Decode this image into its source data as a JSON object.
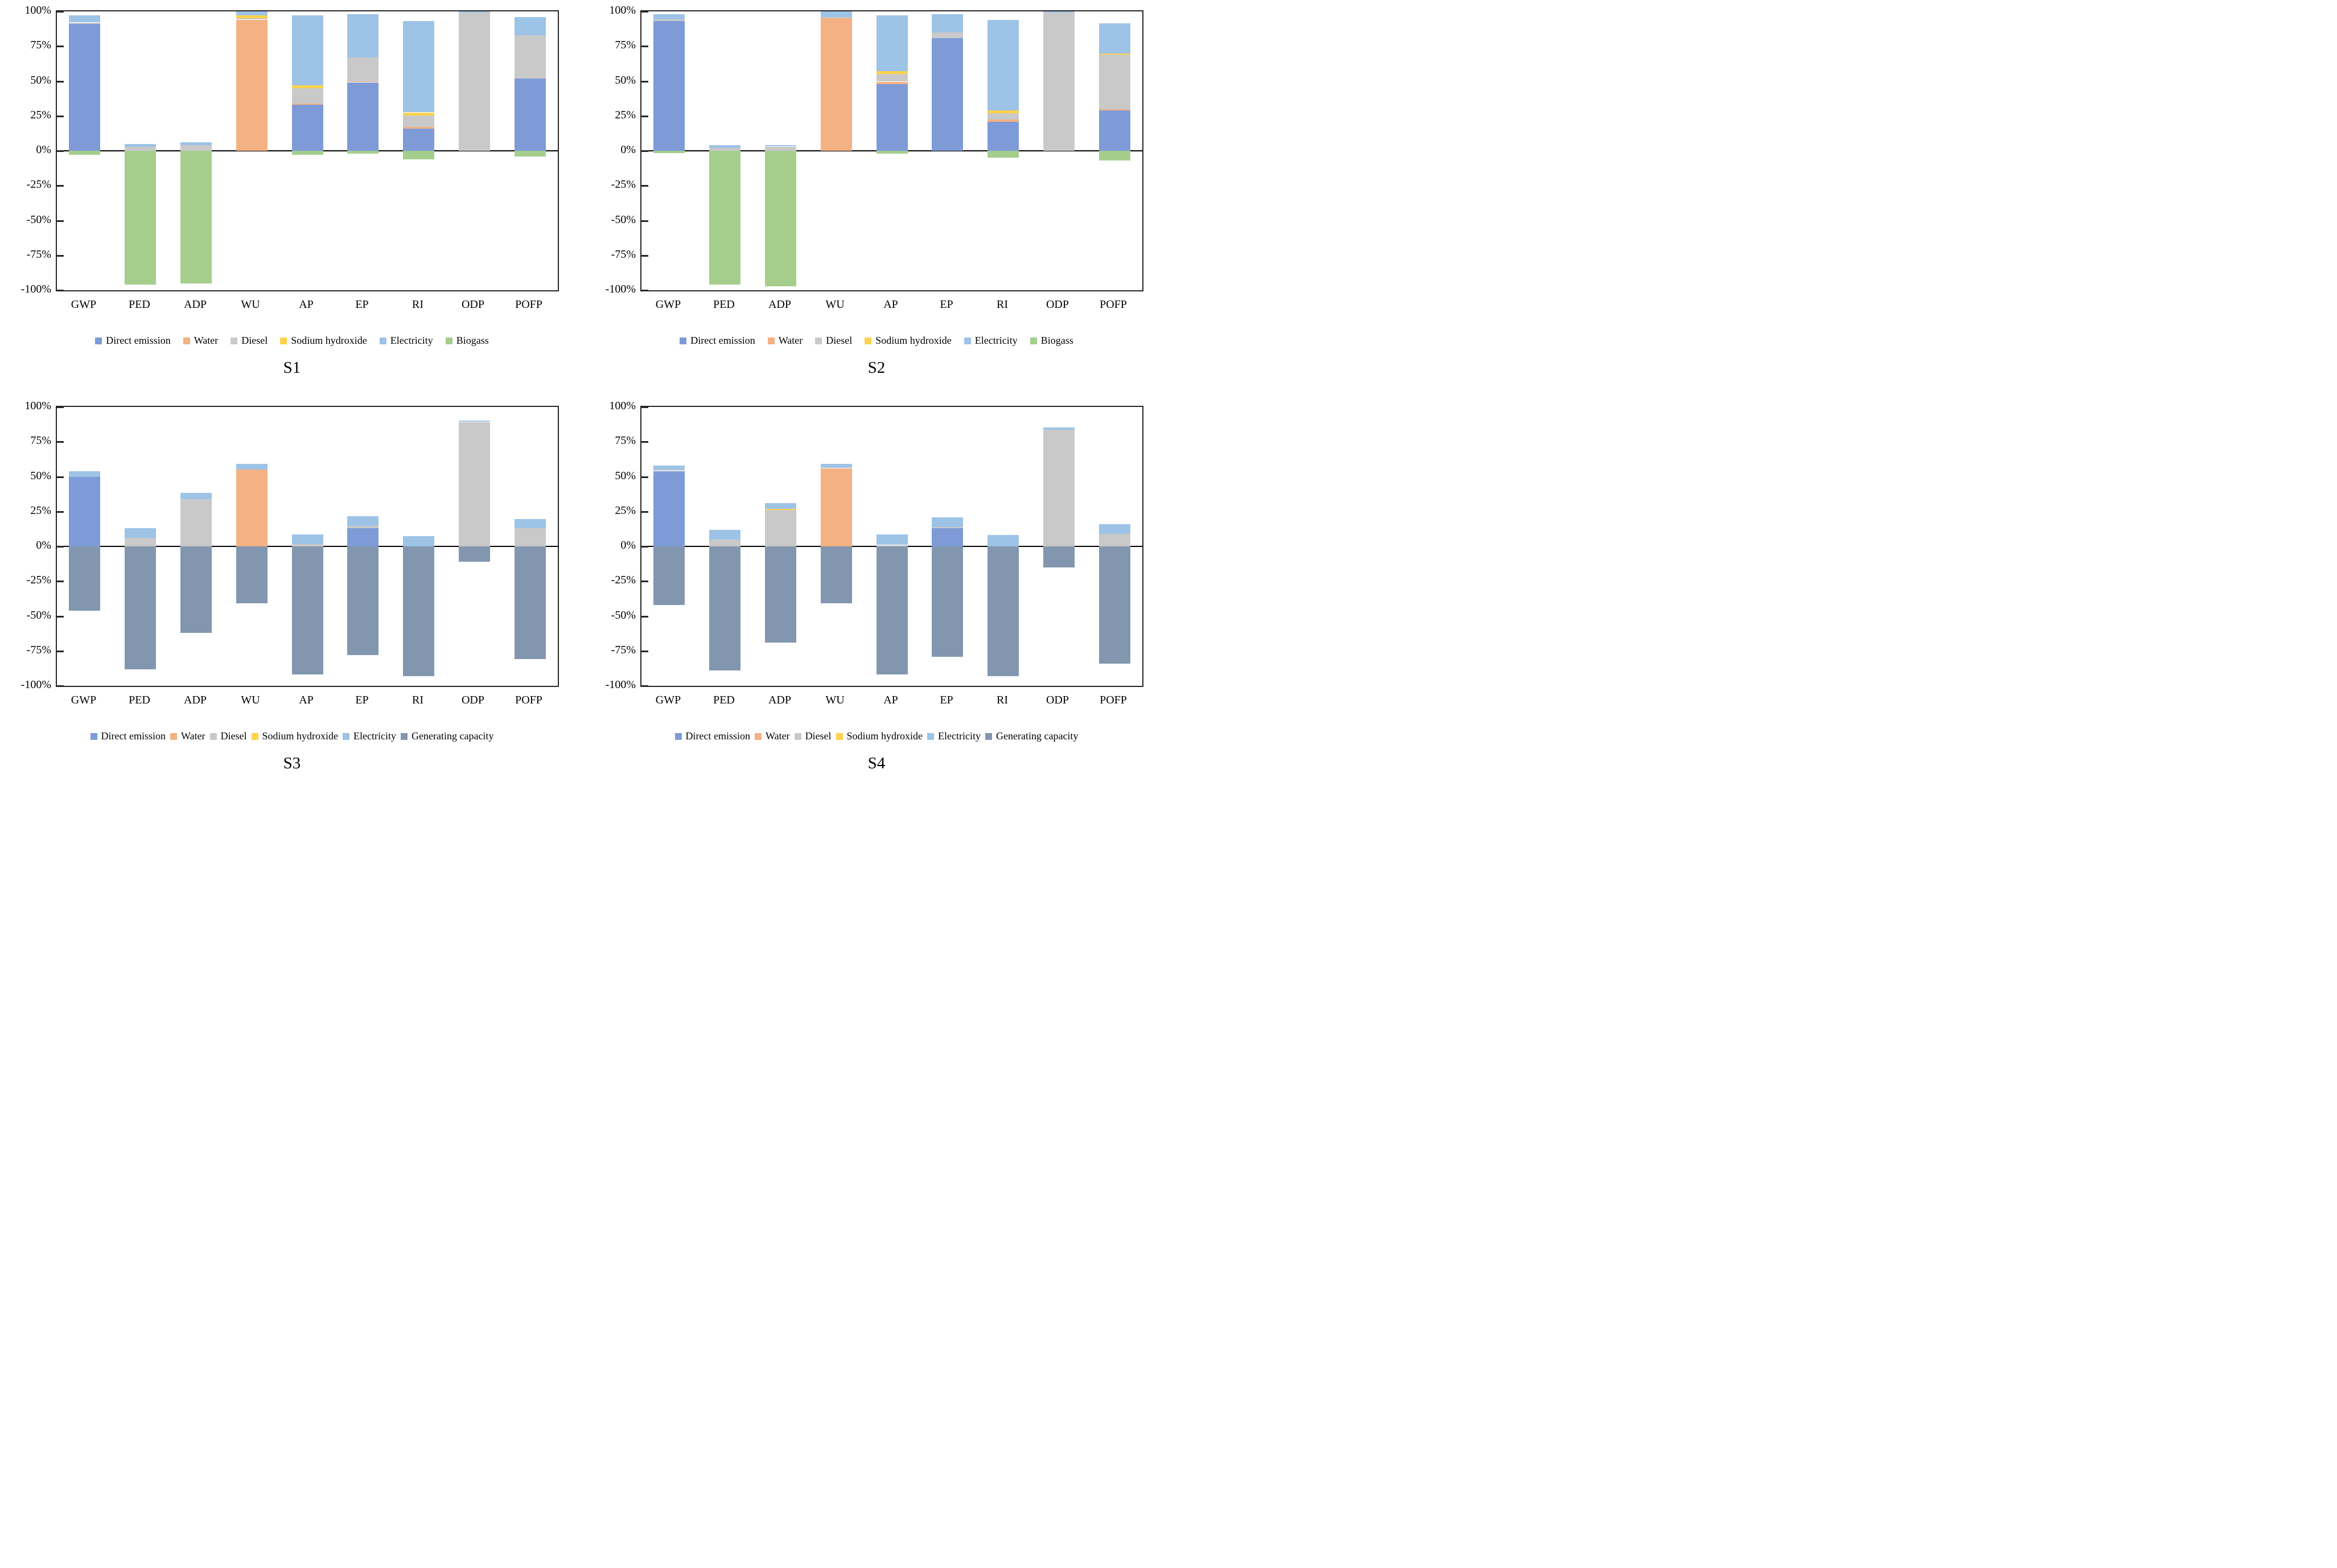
{
  "colors": {
    "Direct emission": "#7E9BD7",
    "Water": "#F4B183",
    "Diesel": "#C9C9C9",
    "Sodium hydroxide": "#FFD24D",
    "Electricity": "#9DC3E6",
    "Biogass": "#A5CE8D",
    "Generating capacity": "#8296AF"
  },
  "axis_color": "#262626",
  "chart_data": [
    {
      "type": "bar",
      "stacked": true,
      "title": "S1",
      "xlabel": "",
      "ylabel": "",
      "ylim": [
        -100,
        100
      ],
      "grid": false,
      "legend_position": "bottom",
      "y_ticks": [
        "100%",
        "75%",
        "50%",
        "25%",
        "0%",
        "-25%",
        "-50%",
        "-75%",
        "-100%"
      ],
      "categories": [
        "GWP",
        "PED",
        "ADP",
        "WU",
        "AP",
        "EP",
        "RI",
        "ODP",
        "POFP"
      ],
      "series": [
        {
          "name": "Direct emission",
          "values": [
            91,
            0,
            0,
            0,
            33,
            49,
            16,
            0,
            52
          ]
        },
        {
          "name": "Water",
          "values": [
            0,
            0,
            0,
            94,
            1,
            1,
            1.5,
            0,
            0
          ]
        },
        {
          "name": "Diesel",
          "values": [
            1,
            3,
            4,
            1,
            11,
            17,
            8,
            99,
            31
          ]
        },
        {
          "name": "Sodium hydroxide",
          "values": [
            0,
            0,
            0,
            2,
            2,
            0,
            2,
            0,
            0
          ]
        },
        {
          "name": "Electricity",
          "values": [
            5,
            2,
            2,
            3,
            50,
            31,
            65.5,
            1,
            13
          ]
        },
        {
          "name": "Biogass",
          "values": [
            -3,
            -96,
            -95,
            0,
            -3,
            -2,
            -6,
            0,
            -4
          ]
        }
      ]
    },
    {
      "type": "bar",
      "stacked": true,
      "title": "S2",
      "xlabel": "",
      "ylabel": "",
      "ylim": [
        -100,
        100
      ],
      "grid": false,
      "legend_position": "bottom",
      "y_ticks": [
        "100%",
        "75%",
        "50%",
        "25%",
        "0%",
        "-25%",
        "-50%",
        "-75%",
        "-100%"
      ],
      "categories": [
        "GWP",
        "PED",
        "ADP",
        "WU",
        "AP",
        "EP",
        "RI",
        "ODP",
        "POFP"
      ],
      "series": [
        {
          "name": "Direct emission",
          "values": [
            93,
            0,
            0,
            0,
            48,
            81,
            21,
            0,
            29
          ]
        },
        {
          "name": "Water",
          "values": [
            0,
            0,
            0,
            95,
            1.5,
            0,
            1.5,
            0,
            1
          ]
        },
        {
          "name": "Diesel",
          "values": [
            1.5,
            2,
            3,
            1,
            5.5,
            4,
            4.5,
            99,
            39
          ]
        },
        {
          "name": "Sodium hydroxide",
          "values": [
            0,
            0,
            0,
            0,
            2,
            0,
            2,
            0,
            1
          ]
        },
        {
          "name": "Electricity",
          "values": [
            3.5,
            2,
            1,
            4,
            40,
            13,
            65,
            1,
            21.5
          ]
        },
        {
          "name": "Biogass",
          "values": [
            -1.5,
            -96,
            -97,
            0,
            -2,
            0,
            -5,
            0,
            -7
          ]
        }
      ]
    },
    {
      "type": "bar",
      "stacked": true,
      "title": "S3",
      "xlabel": "",
      "ylabel": "",
      "ylim": [
        -100,
        100
      ],
      "grid": false,
      "legend_position": "bottom",
      "y_ticks": [
        "100%",
        "75%",
        "50%",
        "25%",
        "0%",
        "-25%",
        "-50%",
        "-75%",
        "-100%"
      ],
      "categories": [
        "GWP",
        "PED",
        "ADP",
        "WU",
        "AP",
        "EP",
        "RI",
        "ODP",
        "POFP"
      ],
      "series": [
        {
          "name": "Direct emission",
          "values": [
            50,
            0,
            0,
            0,
            0,
            13,
            0,
            0,
            0
          ]
        },
        {
          "name": "Water",
          "values": [
            0,
            0,
            0,
            55,
            0,
            0,
            0,
            0,
            0
          ]
        },
        {
          "name": "Diesel",
          "values": [
            0,
            6,
            34,
            0,
            1.5,
            1.5,
            0,
            89,
            13
          ]
        },
        {
          "name": "Sodium hydroxide",
          "values": [
            0,
            0,
            0,
            0,
            0,
            0,
            0,
            0,
            0
          ]
        },
        {
          "name": "Electricity",
          "values": [
            4,
            7,
            4.5,
            4,
            7,
            7,
            7.5,
            1,
            6.5
          ]
        },
        {
          "name": "Generating capacity",
          "values": [
            -46,
            -88,
            -62,
            -41,
            -92,
            -78,
            -93,
            -11,
            -81
          ]
        }
      ]
    },
    {
      "type": "bar",
      "stacked": true,
      "title": "S4",
      "xlabel": "",
      "ylabel": "",
      "ylim": [
        -100,
        100
      ],
      "grid": false,
      "legend_position": "bottom",
      "y_ticks": [
        "100%",
        "75%",
        "50%",
        "25%",
        "0%",
        "-25%",
        "-50%",
        "-75%",
        "-100%"
      ],
      "categories": [
        "GWP",
        "PED",
        "ADP",
        "WU",
        "AP",
        "EP",
        "RI",
        "ODP",
        "POFP"
      ],
      "series": [
        {
          "name": "Direct emission",
          "values": [
            54,
            0,
            0,
            0,
            0,
            13,
            0,
            0,
            0
          ]
        },
        {
          "name": "Water",
          "values": [
            0,
            0,
            0,
            56,
            0,
            0,
            0,
            0,
            0
          ]
        },
        {
          "name": "Diesel",
          "values": [
            1,
            5,
            26,
            0,
            1,
            1,
            0,
            84,
            9
          ]
        },
        {
          "name": "Sodium hydroxide",
          "values": [
            0,
            0,
            1,
            0,
            0,
            0,
            0,
            0,
            0
          ]
        },
        {
          "name": "Electricity",
          "values": [
            3,
            7,
            4,
            3,
            7.5,
            7,
            8,
            1.5,
            7
          ]
        },
        {
          "name": "Generating capacity",
          "values": [
            -42,
            -89,
            -69,
            -41,
            -92,
            -79,
            -93,
            -15,
            -84
          ]
        }
      ]
    }
  ]
}
